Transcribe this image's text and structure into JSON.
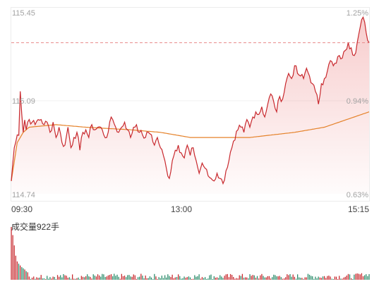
{
  "chart_data": {
    "type": "line",
    "price_axis": {
      "ticks": [
        "115.45",
        "115.09",
        "114.74"
      ],
      "range": [
        114.74,
        115.45
      ]
    },
    "percent_axis": {
      "ticks": [
        "1.25%",
        "0.94%",
        "0.63%"
      ],
      "range": [
        0.63,
        1.25
      ]
    },
    "reference_value": 115.33,
    "time_labels": [
      "09:30",
      "13:00",
      "15:15"
    ],
    "x_count": 241,
    "colors": {
      "price": "#c8282d",
      "avg": "#e5822a",
      "ref": "#e78a8a",
      "up": "#c8282d",
      "down": "#2a8c6a"
    },
    "price_keys": [
      [
        0,
        114.79
      ],
      [
        1,
        114.86
      ],
      [
        2,
        114.92
      ],
      [
        3,
        114.94
      ],
      [
        4,
        114.97
      ],
      [
        5,
        114.98
      ],
      [
        6,
        115.14
      ],
      [
        7,
        115.06
      ],
      [
        8,
        114.98
      ],
      [
        9,
        115.03
      ],
      [
        10,
        114.99
      ],
      [
        11,
        115.02
      ],
      [
        12,
        115.03
      ],
      [
        14,
        115.02
      ],
      [
        16,
        115.01
      ],
      [
        18,
        115.03
      ],
      [
        20,
        115.03
      ],
      [
        22,
        115.01
      ],
      [
        24,
        115.02
      ],
      [
        26,
        114.98
      ],
      [
        28,
        115.02
      ],
      [
        30,
        114.96
      ],
      [
        32,
        115.0
      ],
      [
        34,
        114.94
      ],
      [
        36,
        114.93
      ],
      [
        38,
        115.0
      ],
      [
        40,
        114.92
      ],
      [
        42,
        114.96
      ],
      [
        44,
        114.98
      ],
      [
        46,
        114.91
      ],
      [
        48,
        114.98
      ],
      [
        50,
        114.99
      ],
      [
        52,
        114.96
      ],
      [
        54,
        115.01
      ],
      [
        56,
        114.99
      ],
      [
        58,
        115.0
      ],
      [
        60,
        115.0
      ],
      [
        62,
        114.97
      ],
      [
        64,
        114.96
      ],
      [
        66,
        115.02
      ],
      [
        68,
        115.03
      ],
      [
        70,
        115.0
      ],
      [
        72,
        114.98
      ],
      [
        74,
        115.0
      ],
      [
        76,
        115.02
      ],
      [
        78,
        114.99
      ],
      [
        80,
        114.96
      ],
      [
        82,
        115.0
      ],
      [
        84,
        115.01
      ],
      [
        86,
        114.98
      ],
      [
        88,
        114.97
      ],
      [
        90,
        114.96
      ],
      [
        92,
        114.98
      ],
      [
        94,
        114.97
      ],
      [
        96,
        114.93
      ],
      [
        98,
        114.96
      ],
      [
        100,
        114.92
      ],
      [
        102,
        114.89
      ],
      [
        104,
        114.84
      ],
      [
        106,
        114.8
      ],
      [
        108,
        114.87
      ],
      [
        110,
        114.91
      ],
      [
        112,
        114.93
      ],
      [
        114,
        114.9
      ],
      [
        116,
        114.88
      ],
      [
        118,
        114.93
      ],
      [
        120,
        114.89
      ],
      [
        122,
        114.92
      ],
      [
        124,
        114.87
      ],
      [
        126,
        114.82
      ],
      [
        128,
        114.86
      ],
      [
        130,
        114.84
      ],
      [
        132,
        114.81
      ],
      [
        134,
        114.8
      ],
      [
        136,
        114.79
      ],
      [
        138,
        114.82
      ],
      [
        140,
        114.8
      ],
      [
        142,
        114.78
      ],
      [
        144,
        114.83
      ],
      [
        146,
        114.87
      ],
      [
        148,
        114.92
      ],
      [
        150,
        114.95
      ],
      [
        152,
        114.99
      ],
      [
        154,
        115.0
      ],
      [
        156,
        114.98
      ],
      [
        158,
        115.03
      ],
      [
        160,
        115.0
      ],
      [
        162,
        115.04
      ],
      [
        164,
        115.06
      ],
      [
        166,
        115.05
      ],
      [
        168,
        115.08
      ],
      [
        170,
        115.04
      ],
      [
        172,
        115.09
      ],
      [
        174,
        115.13
      ],
      [
        176,
        115.1
      ],
      [
        178,
        115.06
      ],
      [
        180,
        115.12
      ],
      [
        182,
        115.11
      ],
      [
        184,
        115.17
      ],
      [
        186,
        115.21
      ],
      [
        188,
        115.19
      ],
      [
        190,
        115.24
      ],
      [
        192,
        115.21
      ],
      [
        194,
        115.2
      ],
      [
        196,
        115.19
      ],
      [
        198,
        115.23
      ],
      [
        200,
        115.2
      ],
      [
        202,
        115.17
      ],
      [
        204,
        115.14
      ],
      [
        206,
        115.09
      ],
      [
        208,
        115.17
      ],
      [
        210,
        115.19
      ],
      [
        212,
        115.22
      ],
      [
        214,
        115.26
      ],
      [
        216,
        115.24
      ],
      [
        218,
        115.25
      ],
      [
        220,
        115.28
      ],
      [
        222,
        115.27
      ],
      [
        224,
        115.3
      ],
      [
        226,
        115.33
      ],
      [
        228,
        115.31
      ],
      [
        230,
        115.28
      ],
      [
        232,
        115.33
      ],
      [
        234,
        115.39
      ],
      [
        236,
        115.43
      ],
      [
        238,
        115.37
      ],
      [
        240,
        115.33
      ]
    ],
    "avg_keys": [
      [
        0,
        114.79
      ],
      [
        4,
        114.94
      ],
      [
        8,
        114.98
      ],
      [
        12,
        115.0
      ],
      [
        30,
        115.01
      ],
      [
        50,
        115.0
      ],
      [
        80,
        114.99
      ],
      [
        100,
        114.98
      ],
      [
        110,
        114.97
      ],
      [
        120,
        114.96
      ],
      [
        135,
        114.96
      ],
      [
        145,
        114.96
      ],
      [
        160,
        114.96
      ],
      [
        175,
        114.97
      ],
      [
        190,
        114.98
      ],
      [
        200,
        114.99
      ],
      [
        210,
        115.0
      ],
      [
        220,
        115.02
      ],
      [
        230,
        115.04
      ],
      [
        240,
        115.06
      ]
    ],
    "volume": {
      "label": "成交量922手",
      "count": 241,
      "values_top": [
        922,
        780,
        600,
        420,
        320,
        280,
        250,
        220,
        200,
        180,
        150,
        130
      ]
    }
  }
}
